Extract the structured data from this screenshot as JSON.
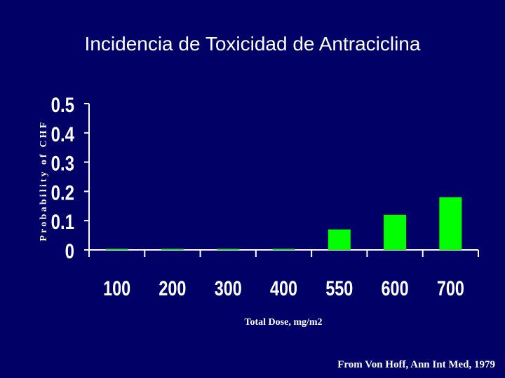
{
  "slide": {
    "title": "Incidencia de Toxicidad de Antraciclina",
    "credit": "From Von Hoff, Ann Int Med, 1979"
  },
  "colors": {
    "background": "#000066",
    "bar": "#00ff00",
    "text": "#ffffff"
  },
  "chart_data": {
    "type": "bar",
    "categories": [
      "100",
      "200",
      "300",
      "400",
      "550",
      "600",
      "700"
    ],
    "values": [
      0.002,
      0.002,
      0.002,
      0.002,
      0.07,
      0.12,
      0.18
    ],
    "xlabel": "Total Dose, mg/m2",
    "ylabel": "Probability of CHF",
    "ylim": [
      0,
      0.5
    ],
    "yticks": [
      "0",
      "0.1",
      "0.2",
      "0.3",
      "0.4",
      "0.5"
    ],
    "grid": false,
    "legend": "none"
  }
}
